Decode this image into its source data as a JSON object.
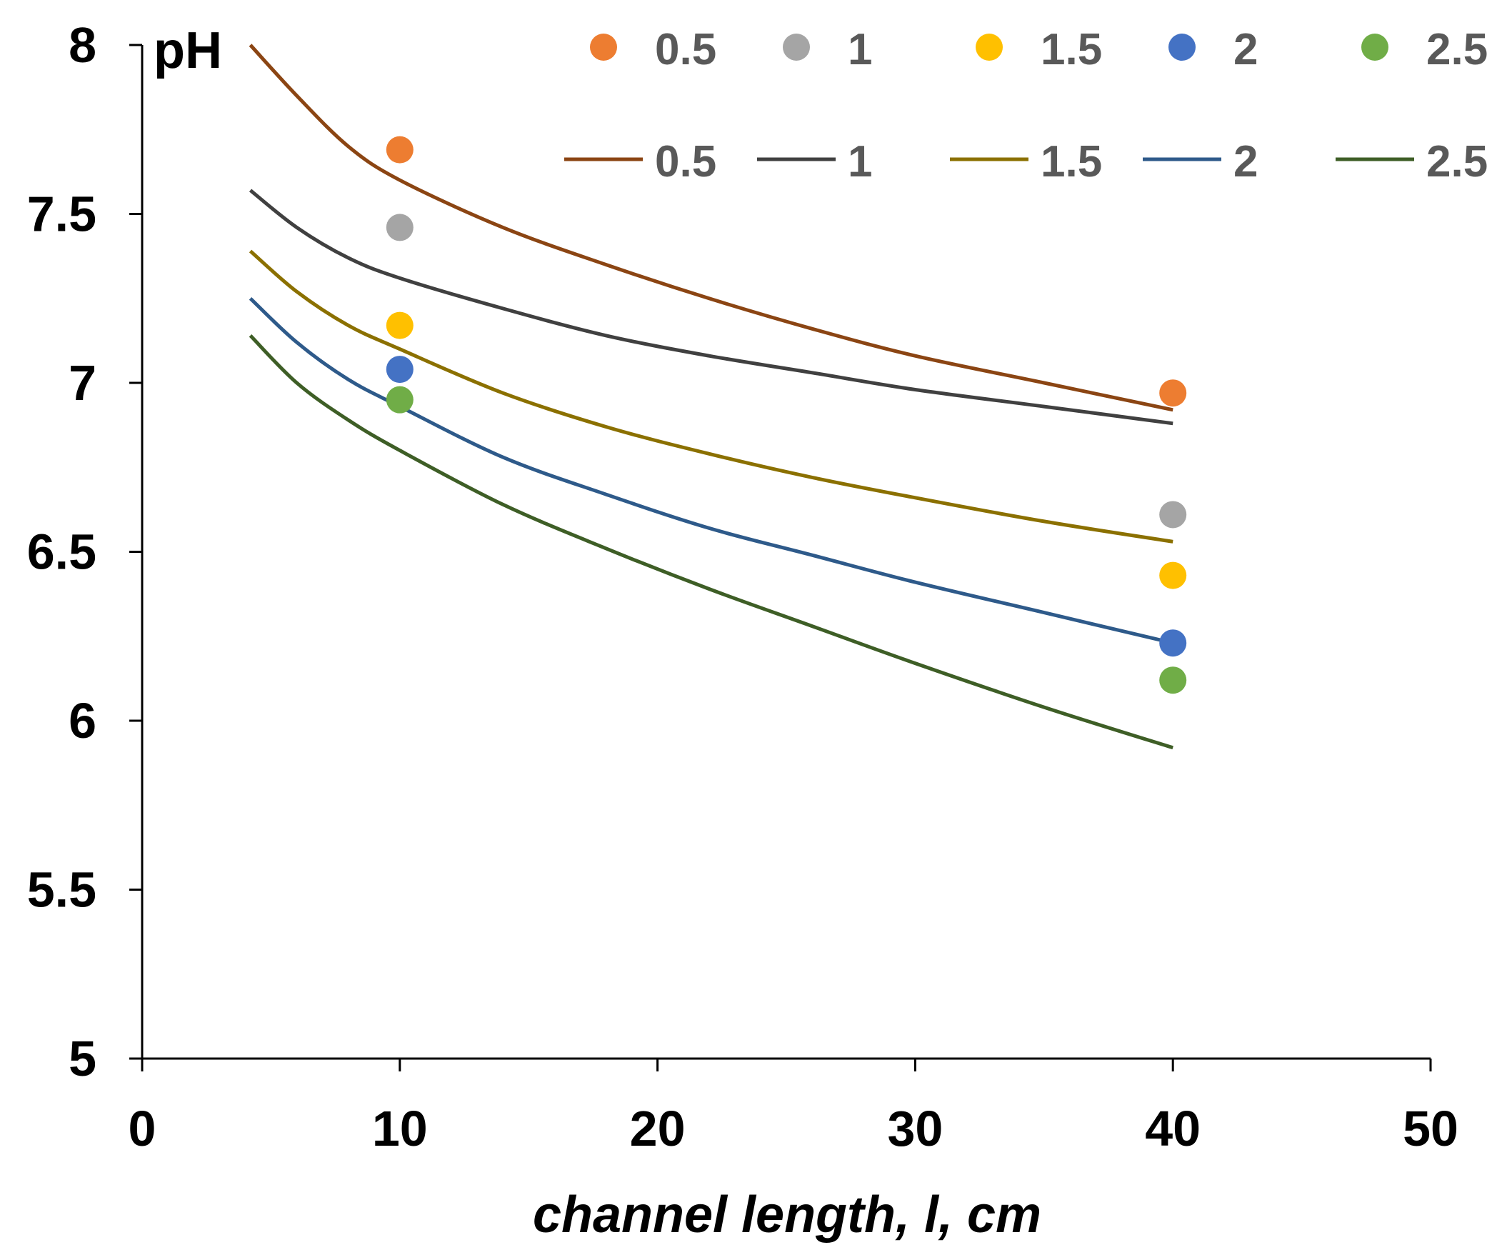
{
  "chart_data": {
    "type": "line",
    "title": "",
    "xlabel": "channel length, l, cm",
    "ylabel": "pH",
    "xlim": [
      0,
      50
    ],
    "ylim": [
      5,
      8
    ],
    "x_ticks": [
      0,
      10,
      20,
      30,
      40,
      50
    ],
    "y_ticks": [
      5,
      5.5,
      6,
      6.5,
      7,
      7.5,
      8
    ],
    "x_tick_labels": [
      "0",
      "10",
      "20",
      "30",
      "40",
      "50"
    ],
    "y_tick_labels": [
      "5",
      "5.5",
      "6",
      "6.5",
      "7",
      "7.5",
      "8"
    ],
    "grid": false,
    "legend_position": "top-right",
    "point_series": [
      {
        "name": "0.5",
        "color": "#ED7D31",
        "points": [
          [
            10,
            7.69
          ],
          [
            40,
            6.97
          ]
        ]
      },
      {
        "name": "1",
        "color": "#A5A5A5",
        "points": [
          [
            10,
            7.46
          ],
          [
            40,
            6.61
          ]
        ]
      },
      {
        "name": "1.5",
        "color": "#FFC000",
        "points": [
          [
            10,
            7.17
          ],
          [
            40,
            6.43
          ]
        ]
      },
      {
        "name": "2",
        "color": "#4472C4",
        "points": [
          [
            10,
            7.04
          ],
          [
            40,
            6.23
          ]
        ]
      },
      {
        "name": "2.5",
        "color": "#70AD47",
        "points": [
          [
            10,
            6.95
          ],
          [
            40,
            6.12
          ]
        ]
      }
    ],
    "line_series": [
      {
        "name": "0.5",
        "color": "#8B4513",
        "points": [
          [
            4.2,
            8.0
          ],
          [
            6,
            7.85
          ],
          [
            8,
            7.7
          ],
          [
            10,
            7.6
          ],
          [
            14,
            7.46
          ],
          [
            18,
            7.35
          ],
          [
            22,
            7.25
          ],
          [
            26,
            7.16
          ],
          [
            30,
            7.08
          ],
          [
            35,
            7.0
          ],
          [
            40,
            6.92
          ]
        ]
      },
      {
        "name": "1",
        "color": "#404040",
        "points": [
          [
            4.2,
            7.57
          ],
          [
            6,
            7.46
          ],
          [
            8,
            7.37
          ],
          [
            10,
            7.31
          ],
          [
            14,
            7.22
          ],
          [
            18,
            7.14
          ],
          [
            22,
            7.08
          ],
          [
            26,
            7.03
          ],
          [
            30,
            6.98
          ],
          [
            35,
            6.93
          ],
          [
            40,
            6.88
          ]
        ]
      },
      {
        "name": "1.5",
        "color": "#8B7000",
        "points": [
          [
            4.2,
            7.39
          ],
          [
            6,
            7.27
          ],
          [
            8,
            7.17
          ],
          [
            10,
            7.1
          ],
          [
            14,
            6.97
          ],
          [
            18,
            6.87
          ],
          [
            22,
            6.79
          ],
          [
            26,
            6.72
          ],
          [
            30,
            6.66
          ],
          [
            35,
            6.59
          ],
          [
            40,
            6.53
          ]
        ]
      },
      {
        "name": "2",
        "color": "#2E5A8A",
        "points": [
          [
            4.2,
            7.25
          ],
          [
            6,
            7.12
          ],
          [
            8,
            7.01
          ],
          [
            10,
            6.93
          ],
          [
            14,
            6.78
          ],
          [
            18,
            6.67
          ],
          [
            22,
            6.57
          ],
          [
            26,
            6.49
          ],
          [
            30,
            6.41
          ],
          [
            35,
            6.32
          ],
          [
            40,
            6.23
          ]
        ]
      },
      {
        "name": "2.5",
        "color": "#3E5E26",
        "points": [
          [
            4.2,
            7.14
          ],
          [
            6,
            7.0
          ],
          [
            8,
            6.89
          ],
          [
            10,
            6.8
          ],
          [
            14,
            6.64
          ],
          [
            18,
            6.51
          ],
          [
            22,
            6.39
          ],
          [
            26,
            6.28
          ],
          [
            30,
            6.17
          ],
          [
            35,
            6.04
          ],
          [
            40,
            5.92
          ]
        ]
      }
    ]
  }
}
